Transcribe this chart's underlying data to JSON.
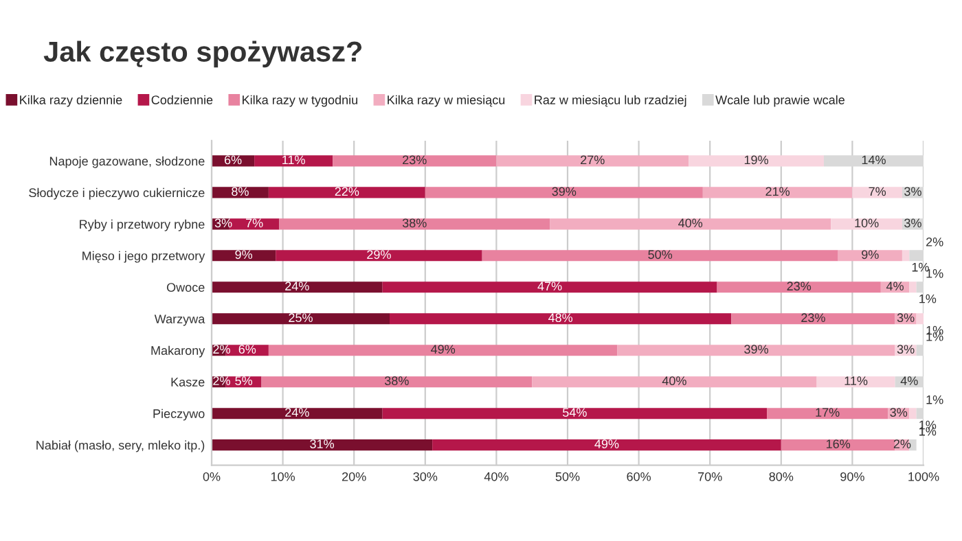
{
  "chart_data": {
    "type": "bar",
    "orientation": "horizontal",
    "stacked": true,
    "title": "Jak często spożywasz?",
    "categories": [
      "Napoje gazowane, słodzone",
      "Słodycze i pieczywo cukiernicze",
      "Ryby i przetwory rybne",
      "Mięso i jego przetwory",
      "Owoce",
      "Warzywa",
      "Makarony",
      "Kasze",
      "Pieczywo",
      "Nabiał (masło, sery, mleko itp.)"
    ],
    "series": [
      {
        "name": "Kilka razy dziennie",
        "color": "#7a0f2e",
        "values": [
          6,
          8,
          2.5,
          9,
          24,
          25,
          2,
          2,
          24,
          31
        ],
        "value_labels": [
          "6%",
          "8%",
          "3%",
          "9%",
          "24%",
          "25%",
          "2%",
          "2%",
          "24%",
          "31%"
        ]
      },
      {
        "name": "Codziennie",
        "color": "#b5174a",
        "values": [
          11,
          22,
          7,
          29,
          47,
          48,
          6,
          5,
          54,
          49
        ],
        "value_labels": [
          "11%",
          "22%",
          "7%",
          "29%",
          "47%",
          "48%",
          "6%",
          "5%",
          "54%",
          "49%"
        ]
      },
      {
        "name": "Kilka razy w tygodniu",
        "color": "#e8829f",
        "values": [
          23,
          39,
          38,
          50,
          23,
          23,
          49,
          38,
          17,
          16
        ],
        "value_labels": [
          "23%",
          "39%",
          "38%",
          "50%",
          "23%",
          "23%",
          "49%",
          "38%",
          "17%",
          "16%"
        ]
      },
      {
        "name": "Kilka razy w miesiącu",
        "color": "#f2adc0",
        "values": [
          27,
          21,
          39.5,
          9,
          4,
          3,
          39,
          40,
          3,
          2
        ],
        "value_labels": [
          "27%",
          "21%",
          "40%",
          "9%",
          "4%",
          "3%",
          "39%",
          "40%",
          "3%",
          "2%"
        ]
      },
      {
        "name": "Raz w miesiącu lub rzadziej",
        "color": "#f8d5df",
        "values": [
          19,
          7,
          10,
          1,
          1,
          1,
          3,
          11,
          1,
          null
        ],
        "value_labels": [
          "19%",
          "7%",
          "10%",
          "1%",
          "1%",
          "1%",
          "3%",
          "11%",
          "1%",
          null
        ]
      },
      {
        "name": "Wcale lub prawie wcale",
        "color": "#d9d9d9",
        "values": [
          14,
          3,
          3,
          2,
          1,
          null,
          1,
          4,
          1,
          1
        ],
        "value_labels": [
          "14%",
          "3%",
          "3%",
          "2%",
          "1%",
          null,
          "1%",
          "4%",
          "1%",
          "1%"
        ]
      }
    ],
    "xlim": [
      0,
      100
    ],
    "xticks": [
      {
        "value": 0,
        "label": "0%"
      },
      {
        "value": 10,
        "label": "10%"
      },
      {
        "value": 20,
        "label": "20%"
      },
      {
        "value": 30,
        "label": "30%"
      },
      {
        "value": 40,
        "label": "40%"
      },
      {
        "value": 50,
        "label": "50%"
      },
      {
        "value": 60,
        "label": "60%"
      },
      {
        "value": 70,
        "label": "70%"
      },
      {
        "value": 80,
        "label": "80%"
      },
      {
        "value": 90,
        "label": "90%"
      },
      {
        "value": 100,
        "label": "100%"
      }
    ],
    "grid": "x",
    "legend": "top",
    "marker": "square"
  }
}
